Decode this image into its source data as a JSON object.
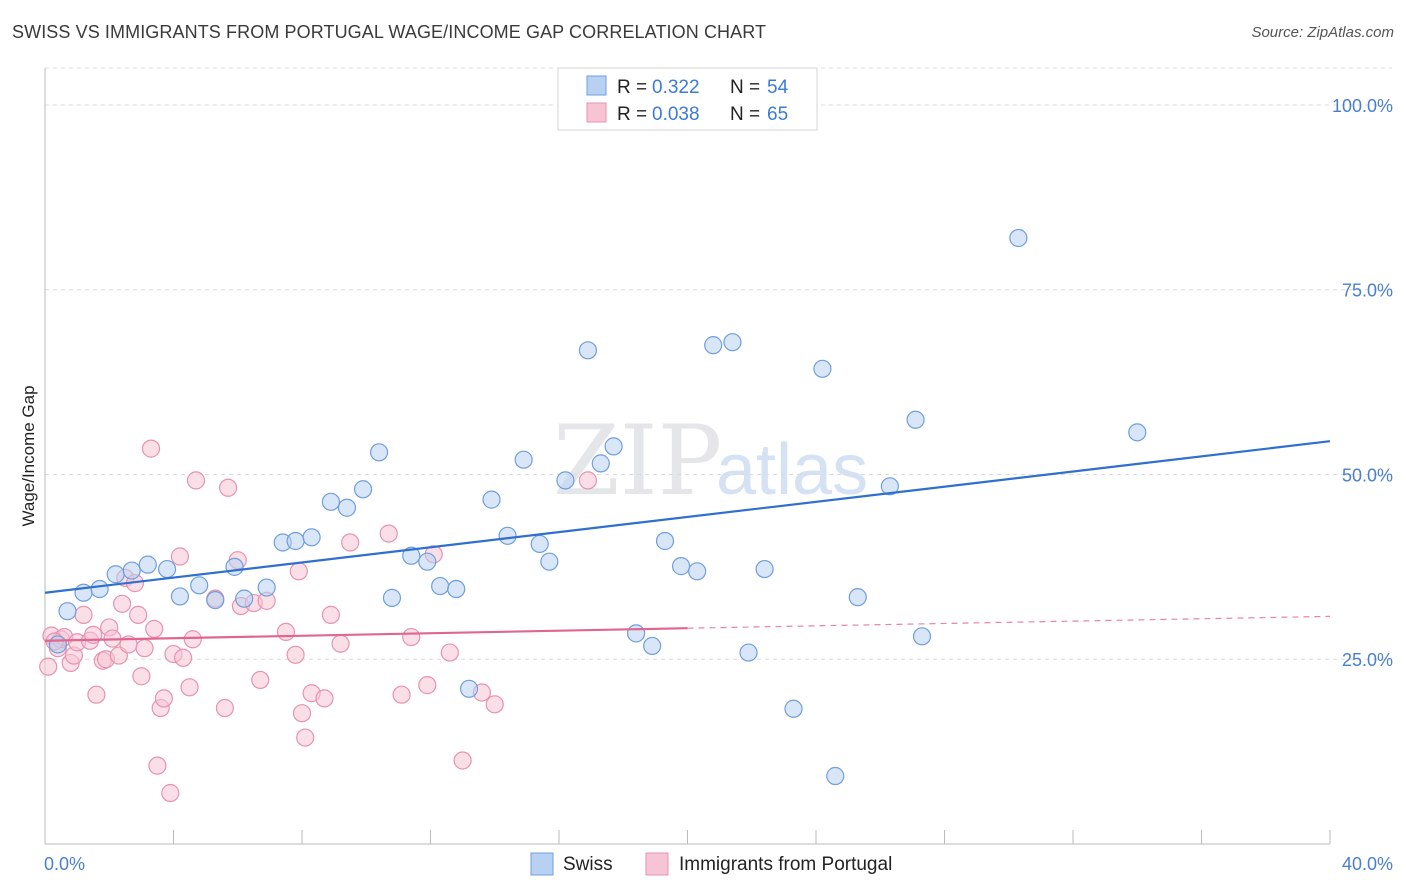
{
  "title": "SWISS VS IMMIGRANTS FROM PORTUGAL WAGE/INCOME GAP CORRELATION CHART",
  "source": "Source: ZipAtlas.com",
  "watermark": {
    "zip": "ZIP",
    "atlas": "atlas"
  },
  "colors": {
    "swiss_fill": "#b8d1f3",
    "swiss_stroke": "#6f9fdc",
    "swiss_line": "#2f6fd0",
    "portugal_fill": "#f7c4d4",
    "portugal_stroke": "#e793b0",
    "portugal_line": "#e0668f",
    "axis_tick_text": "#4a7fd0"
  },
  "legend": {
    "rows": [
      {
        "r_label": "R =",
        "r_value": "0.322",
        "n_label": "N =",
        "n_value": "54"
      },
      {
        "r_label": "R =",
        "r_value": "0.038",
        "n_label": "N =",
        "n_value": "65"
      }
    ]
  },
  "chart_data": {
    "type": "scatter",
    "title": "SWISS VS IMMIGRANTS FROM PORTUGAL WAGE/INCOME GAP CORRELATION CHART",
    "xlabel": "",
    "ylabel": "Wage/Income Gap",
    "xlim": [
      0,
      40
    ],
    "ylim": [
      0,
      105
    ],
    "x_tick_labels": [
      "0.0%",
      "40.0%"
    ],
    "y_ticks": [
      25,
      50,
      75,
      100
    ],
    "y_tick_labels": [
      "25.0%",
      "50.0%",
      "75.0%",
      "100.0%"
    ],
    "legend_position": "top-center",
    "series": [
      {
        "name": "Swiss",
        "r": 0.322,
        "n": 54,
        "trend": {
          "x0": 0,
          "y0": 34,
          "x1": 40,
          "y1": 54.5
        },
        "points": [
          [
            0.4,
            27
          ],
          [
            0.7,
            31.5
          ],
          [
            1.2,
            34
          ],
          [
            1.7,
            34.5
          ],
          [
            2.2,
            36.5
          ],
          [
            2.7,
            37
          ],
          [
            3.2,
            37.8
          ],
          [
            3.8,
            37.2
          ],
          [
            4.2,
            33.5
          ],
          [
            4.8,
            35
          ],
          [
            5.3,
            33
          ],
          [
            5.9,
            37.5
          ],
          [
            6.2,
            33.2
          ],
          [
            6.9,
            34.7
          ],
          [
            7.4,
            40.8
          ],
          [
            7.8,
            41
          ],
          [
            8.3,
            41.5
          ],
          [
            8.9,
            46.3
          ],
          [
            9.4,
            45.5
          ],
          [
            9.9,
            48
          ],
          [
            10.4,
            53
          ],
          [
            10.8,
            33.3
          ],
          [
            11.4,
            39
          ],
          [
            11.9,
            38.2
          ],
          [
            12.3,
            34.9
          ],
          [
            12.8,
            34.5
          ],
          [
            13.2,
            21
          ],
          [
            13.9,
            46.6
          ],
          [
            14.4,
            41.7
          ],
          [
            14.9,
            52
          ],
          [
            15.4,
            40.6
          ],
          [
            15.7,
            38.2
          ],
          [
            16.2,
            49.2
          ],
          [
            16.9,
            66.8
          ],
          [
            17.3,
            51.5
          ],
          [
            17.7,
            53.8
          ],
          [
            18.4,
            28.5
          ],
          [
            18.9,
            26.8
          ],
          [
            19.3,
            41
          ],
          [
            19.8,
            37.6
          ],
          [
            20.3,
            36.9
          ],
          [
            20.8,
            67.5
          ],
          [
            21.4,
            67.9
          ],
          [
            21.9,
            25.9
          ],
          [
            22.4,
            37.2
          ],
          [
            23.3,
            18.3
          ],
          [
            24.2,
            64.3
          ],
          [
            24.6,
            9.2
          ],
          [
            25.3,
            33.4
          ],
          [
            26.3,
            48.4
          ],
          [
            27.1,
            57.4
          ],
          [
            27.3,
            28.1
          ],
          [
            30.3,
            82
          ],
          [
            34.0,
            55.7
          ]
        ]
      },
      {
        "name": "Immigrants from Portugal",
        "r": 0.038,
        "n": 65,
        "trend": {
          "x0": 0,
          "y0": 27.5,
          "x1": 20,
          "y1": 29.2,
          "dashed_to_x": 40,
          "dashed_to_y": 30.8
        },
        "points": [
          [
            0.1,
            24
          ],
          [
            0.2,
            28.2
          ],
          [
            0.4,
            26.5
          ],
          [
            0.5,
            27.7
          ],
          [
            0.6,
            28
          ],
          [
            0.8,
            24.5
          ],
          [
            0.9,
            25.5
          ],
          [
            1.0,
            27.3
          ],
          [
            1.2,
            31
          ],
          [
            1.4,
            27.5
          ],
          [
            1.5,
            28.3
          ],
          [
            1.6,
            20.2
          ],
          [
            1.8,
            24.8
          ],
          [
            1.9,
            25
          ],
          [
            2.0,
            29.3
          ],
          [
            2.1,
            27.8
          ],
          [
            2.3,
            25.5
          ],
          [
            2.4,
            32.5
          ],
          [
            2.5,
            36
          ],
          [
            2.6,
            27
          ],
          [
            2.8,
            35.3
          ],
          [
            2.9,
            31
          ],
          [
            3.0,
            22.7
          ],
          [
            3.1,
            26.5
          ],
          [
            3.3,
            53.5
          ],
          [
            3.4,
            29.1
          ],
          [
            3.5,
            10.6
          ],
          [
            3.6,
            18.4
          ],
          [
            3.7,
            19.7
          ],
          [
            3.9,
            6.9
          ],
          [
            4.0,
            25.7
          ],
          [
            4.2,
            38.9
          ],
          [
            4.3,
            25.2
          ],
          [
            4.5,
            21.2
          ],
          [
            4.6,
            27.7
          ],
          [
            4.7,
            49.2
          ],
          [
            5.3,
            33.2
          ],
          [
            5.6,
            18.4
          ],
          [
            5.7,
            48.2
          ],
          [
            6.0,
            38.4
          ],
          [
            6.1,
            32.2
          ],
          [
            6.5,
            32.6
          ],
          [
            6.7,
            22.2
          ],
          [
            6.9,
            32.9
          ],
          [
            7.5,
            28.7
          ],
          [
            7.8,
            25.6
          ],
          [
            7.9,
            36.9
          ],
          [
            8.0,
            17.7
          ],
          [
            8.1,
            14.4
          ],
          [
            8.3,
            20.4
          ],
          [
            8.7,
            19.7
          ],
          [
            8.9,
            31
          ],
          [
            9.2,
            27.1
          ],
          [
            9.5,
            40.8
          ],
          [
            10.7,
            42
          ],
          [
            11.1,
            20.2
          ],
          [
            11.4,
            28
          ],
          [
            11.9,
            21.5
          ],
          [
            12.1,
            39.2
          ],
          [
            12.6,
            25.9
          ],
          [
            13.0,
            11.3
          ],
          [
            13.6,
            20.5
          ],
          [
            14.0,
            18.9
          ],
          [
            16.9,
            49.2
          ],
          [
            0.3,
            27.4
          ]
        ]
      }
    ]
  },
  "bottom_legend": {
    "items": [
      {
        "label": "Swiss"
      },
      {
        "label": "Immigrants from Portugal"
      }
    ]
  }
}
